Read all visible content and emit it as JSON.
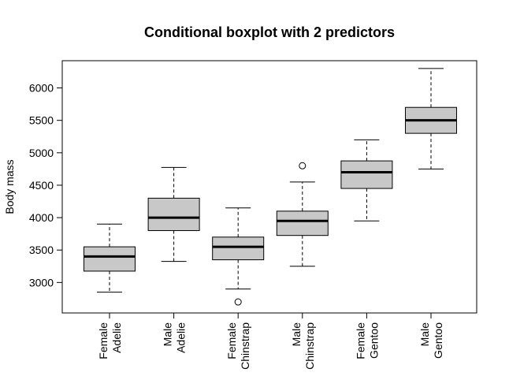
{
  "chart_data": {
    "type": "boxplot",
    "title": "Conditional boxplot with 2 predictors",
    "xlabel": "",
    "ylabel": "Body mass",
    "ylim": [
      2530,
      6420
    ],
    "yticks": [
      3000,
      3500,
      4000,
      4500,
      5000,
      5500,
      6000
    ],
    "ytick_labels": [
      "3000",
      "3500",
      "4000",
      "4500",
      "5000",
      "5500",
      "6000"
    ],
    "grid": false,
    "legend": "none",
    "box_fill": "#c8c8c8",
    "stroke_color": "#000000",
    "categories": [
      {
        "line1": "Female",
        "line2": "Adelie"
      },
      {
        "line1": "Male",
        "line2": "Adelie"
      },
      {
        "line1": "Female",
        "line2": "Chinstrap"
      },
      {
        "line1": "Male",
        "line2": "Chinstrap"
      },
      {
        "line1": "Female",
        "line2": "Gentoo"
      },
      {
        "line1": "Male",
        "line2": "Gentoo"
      }
    ],
    "boxes": [
      {
        "whisker_low": 2850,
        "q1": 3175,
        "median": 3400,
        "q3": 3550,
        "whisker_high": 3900,
        "outliers": []
      },
      {
        "whisker_low": 3325,
        "q1": 3800,
        "median": 4000,
        "q3": 4300,
        "whisker_high": 4775,
        "outliers": []
      },
      {
        "whisker_low": 2900,
        "q1": 3350,
        "median": 3550,
        "q3": 3700,
        "whisker_high": 4150,
        "outliers": [
          2700
        ]
      },
      {
        "whisker_low": 3250,
        "q1": 3725,
        "median": 3950,
        "q3": 4100,
        "whisker_high": 4550,
        "outliers": [
          4800
        ]
      },
      {
        "whisker_low": 3950,
        "q1": 4450,
        "median": 4700,
        "q3": 4875,
        "whisker_high": 5200,
        "outliers": []
      },
      {
        "whisker_low": 4750,
        "q1": 5300,
        "median": 5500,
        "q3": 5700,
        "whisker_high": 6300,
        "outliers": []
      }
    ]
  }
}
